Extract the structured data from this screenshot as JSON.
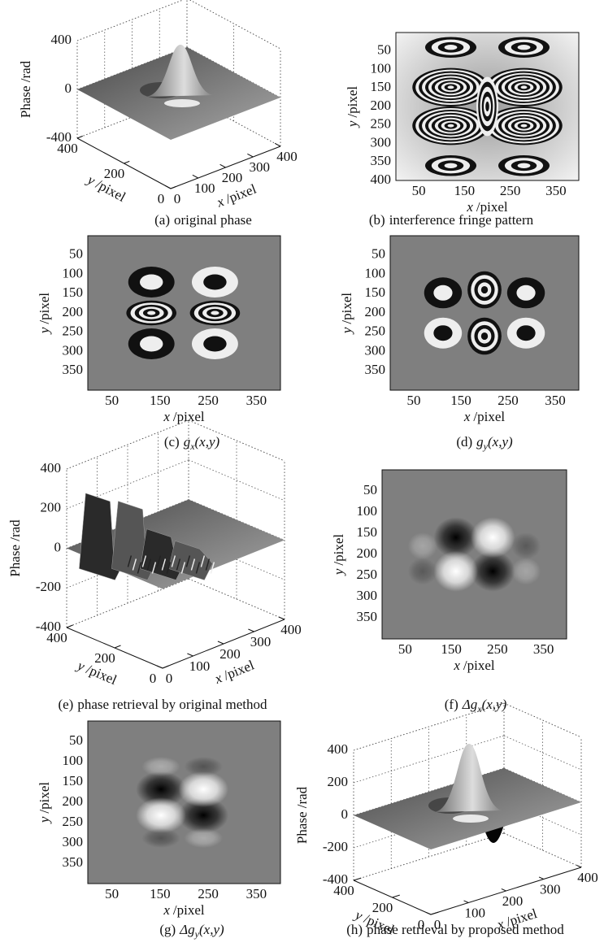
{
  "panels": [
    {
      "caption": {
        "label": "(a)",
        "text": "original phase"
      },
      "z_label": "Phase /rad",
      "y_label": {
        "var": "y",
        "unit": "/pixel"
      },
      "x_label": {
        "var": "x",
        "unit": "/pixel"
      },
      "z_ticks": [
        400,
        0,
        -400
      ],
      "y_ticks": [
        400,
        200,
        0
      ],
      "x_ticks": [
        0,
        100,
        200,
        300,
        400
      ]
    },
    {
      "caption": {
        "label": "(b)",
        "text": "interference fringe pattern"
      },
      "y_label": {
        "var": "y",
        "unit": "/pixel"
      },
      "x_label": {
        "var": "x",
        "unit": "/pixel"
      },
      "y_ticks": [
        50,
        100,
        150,
        200,
        250,
        300,
        350,
        400
      ],
      "x_ticks": [
        50,
        150,
        250,
        350
      ]
    },
    {
      "caption": {
        "label": "(c)",
        "sym": "g",
        "sub": "x",
        "args": "(x,y)"
      },
      "y_label": {
        "var": "y",
        "unit": "/pixel"
      },
      "x_label": {
        "var": "x",
        "unit": "/pixel"
      },
      "y_ticks": [
        50,
        100,
        150,
        200,
        250,
        300,
        350
      ],
      "x_ticks": [
        50,
        150,
        250,
        350
      ]
    },
    {
      "caption": {
        "label": "(d)",
        "sym": "g",
        "sub": "y",
        "args": "(x,y)"
      },
      "y_label": {
        "var": "y",
        "unit": "/pixel"
      },
      "x_label": {
        "var": "x",
        "unit": "/pixel"
      },
      "y_ticks": [
        50,
        100,
        150,
        200,
        250,
        300,
        350
      ],
      "x_ticks": [
        50,
        150,
        250,
        350
      ]
    },
    {
      "caption": {
        "label": "(e)",
        "text": "phase retrieval by original method"
      },
      "z_label": "Phase /rad",
      "y_label": {
        "var": "y",
        "unit": "/pixel"
      },
      "x_label": {
        "var": "x",
        "unit": "/pixel"
      },
      "z_ticks": [
        400,
        200,
        0,
        -200,
        -400
      ],
      "y_ticks": [
        400,
        200,
        0
      ],
      "x_ticks": [
        0,
        100,
        200,
        300,
        400
      ]
    },
    {
      "caption": {
        "label": "(f)",
        "sym": "Δg",
        "sub": "x",
        "args": "(x,y)"
      },
      "y_label": {
        "var": "y",
        "unit": "/pixel"
      },
      "x_label": {
        "var": "x",
        "unit": "/pixel"
      },
      "y_ticks": [
        50,
        100,
        150,
        200,
        250,
        300,
        350
      ],
      "x_ticks": [
        50,
        150,
        250,
        350
      ]
    },
    {
      "caption": {
        "label": "(g)",
        "sym": "Δg",
        "sub": "y",
        "args": "(x,y)"
      },
      "y_label": {
        "var": "y",
        "unit": "/pixel"
      },
      "x_label": {
        "var": "x",
        "unit": "/pixel"
      },
      "y_ticks": [
        50,
        100,
        150,
        200,
        250,
        300,
        350
      ],
      "x_ticks": [
        50,
        150,
        250,
        350
      ]
    },
    {
      "caption": {
        "label": "(h)",
        "text": "phase retrieval by proposed method"
      },
      "z_label": "Phase /rad",
      "y_label": {
        "var": "y",
        "unit": "/pixel"
      },
      "x_label": {
        "var": "x",
        "unit": "/pixel"
      },
      "z_ticks": [
        400,
        200,
        0,
        -200,
        -400
      ],
      "y_ticks": [
        400,
        200,
        0
      ],
      "x_ticks": [
        0,
        100,
        200,
        300,
        400
      ]
    }
  ]
}
